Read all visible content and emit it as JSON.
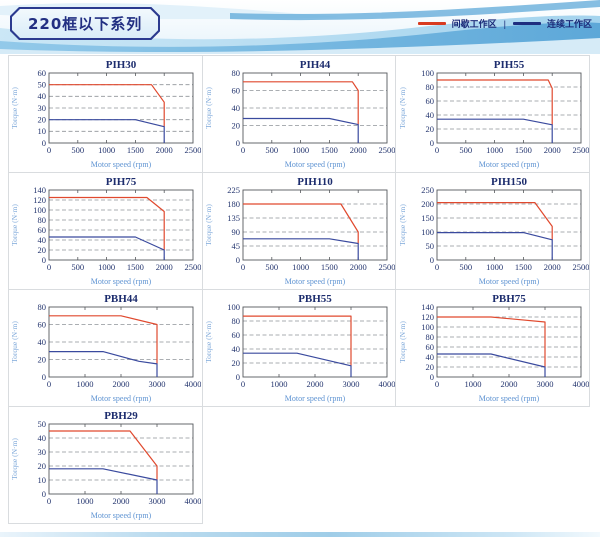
{
  "header": {
    "title": "220框以下系列",
    "legend": {
      "items": [
        {
          "label": "间歇工作区",
          "color": "#d83b20"
        },
        {
          "label": "连续工作区",
          "color": "#1f2e7f"
        }
      ],
      "separator": "|"
    }
  },
  "axes": {
    "xlabel": "Motor speed (rpm)",
    "ylabel": "Torque (N·m)"
  },
  "colors": {
    "intermittent_line": "#e0492e",
    "continuous_line": "#3a4a9e",
    "gridline": "#8f9499",
    "frame": "#55585c",
    "tick_text": "#25366f"
  },
  "chart_data": [
    {
      "type": "line",
      "title": "PIH30",
      "xlim": [
        0,
        2500
      ],
      "xstep": 500,
      "ylim": [
        0,
        60
      ],
      "ystep": 10,
      "series": [
        {
          "name": "间歇工作区",
          "color": "#e0492e",
          "points": [
            [
              0,
              50
            ],
            [
              1780,
              50
            ],
            [
              2000,
              35
            ],
            [
              2000,
              14
            ]
          ]
        },
        {
          "name": "连续工作区",
          "color": "#3a4a9e",
          "points": [
            [
              0,
              20
            ],
            [
              1500,
              20
            ],
            [
              2000,
              14
            ],
            [
              2000,
              0
            ]
          ]
        }
      ]
    },
    {
      "type": "line",
      "title": "PIH44",
      "xlim": [
        0,
        2500
      ],
      "xstep": 500,
      "ylim": [
        0,
        80
      ],
      "ystep": 20,
      "series": [
        {
          "name": "间歇工作区",
          "color": "#e0492e",
          "points": [
            [
              0,
              70
            ],
            [
              1900,
              70
            ],
            [
              2000,
              60
            ],
            [
              2000,
              21
            ]
          ]
        },
        {
          "name": "连续工作区",
          "color": "#3a4a9e",
          "points": [
            [
              0,
              28
            ],
            [
              1500,
              28
            ],
            [
              2000,
              21
            ],
            [
              2000,
              0
            ]
          ]
        }
      ]
    },
    {
      "type": "line",
      "title": "PIH55",
      "xlim": [
        0,
        2500
      ],
      "xstep": 500,
      "ylim": [
        0,
        100
      ],
      "ystep": 20,
      "series": [
        {
          "name": "间歇工作区",
          "color": "#e0492e",
          "points": [
            [
              0,
              90
            ],
            [
              1930,
              90
            ],
            [
              2000,
              78
            ],
            [
              2000,
              26
            ]
          ]
        },
        {
          "name": "连续工作区",
          "color": "#3a4a9e",
          "points": [
            [
              0,
              34
            ],
            [
              1500,
              34
            ],
            [
              2000,
              26
            ],
            [
              2000,
              0
            ]
          ]
        }
      ]
    },
    {
      "type": "line",
      "title": "PIH75",
      "xlim": [
        0,
        2500
      ],
      "xstep": 500,
      "ylim": [
        0,
        140
      ],
      "ystep": 20,
      "series": [
        {
          "name": "间歇工作区",
          "color": "#e0492e",
          "points": [
            [
              0,
              125
            ],
            [
              1700,
              125
            ],
            [
              2000,
              97
            ],
            [
              2000,
              20
            ]
          ]
        },
        {
          "name": "连续工作区",
          "color": "#3a4a9e",
          "points": [
            [
              0,
              46
            ],
            [
              1500,
              46
            ],
            [
              2000,
              20
            ],
            [
              2000,
              0
            ]
          ]
        }
      ]
    },
    {
      "type": "line",
      "title": "PIH110",
      "xlim": [
        0,
        2500
      ],
      "xstep": 500,
      "ylim": [
        0,
        225
      ],
      "ystep": 45,
      "series": [
        {
          "name": "间歇工作区",
          "color": "#e0492e",
          "points": [
            [
              0,
              180
            ],
            [
              1700,
              180
            ],
            [
              2000,
              90
            ],
            [
              2000,
              53
            ]
          ]
        },
        {
          "name": "连续工作区",
          "color": "#3a4a9e",
          "points": [
            [
              0,
              68
            ],
            [
              1500,
              68
            ],
            [
              2000,
              53
            ],
            [
              2000,
              0
            ]
          ]
        }
      ]
    },
    {
      "type": "line",
      "title": "PIH150",
      "xlim": [
        0,
        2500
      ],
      "xstep": 500,
      "ylim": [
        0,
        250
      ],
      "ystep": 50,
      "series": [
        {
          "name": "间歇工作区",
          "color": "#e0492e",
          "points": [
            [
              0,
              205
            ],
            [
              1700,
              205
            ],
            [
              2000,
              120
            ],
            [
              2000,
              72
            ]
          ]
        },
        {
          "name": "连续工作区",
          "color": "#3a4a9e",
          "points": [
            [
              0,
              98
            ],
            [
              1500,
              98
            ],
            [
              2000,
              72
            ],
            [
              2000,
              0
            ]
          ]
        }
      ]
    },
    {
      "type": "line",
      "title": "PBH44",
      "xlim": [
        0,
        4000
      ],
      "xstep": 1000,
      "ylim": [
        0,
        80
      ],
      "ystep": 20,
      "series": [
        {
          "name": "间歇工作区",
          "color": "#e0492e",
          "points": [
            [
              0,
              70
            ],
            [
              2000,
              70
            ],
            [
              3000,
              60
            ],
            [
              3000,
              15
            ]
          ]
        },
        {
          "name": "连续工作区",
          "color": "#3a4a9e",
          "points": [
            [
              0,
              29
            ],
            [
              1500,
              29
            ],
            [
              2500,
              18
            ],
            [
              3000,
              15
            ],
            [
              3000,
              0
            ]
          ]
        }
      ]
    },
    {
      "type": "line",
      "title": "PBH55",
      "xlim": [
        0,
        4000
      ],
      "xstep": 1000,
      "ylim": [
        0,
        100
      ],
      "ystep": 20,
      "series": [
        {
          "name": "间歇工作区",
          "color": "#e0492e",
          "points": [
            [
              0,
              87
            ],
            [
              3000,
              87
            ],
            [
              3000,
              16
            ]
          ]
        },
        {
          "name": "连续工作区",
          "color": "#3a4a9e",
          "points": [
            [
              0,
              34
            ],
            [
              1500,
              34
            ],
            [
              3000,
              16
            ],
            [
              3000,
              0
            ]
          ]
        }
      ]
    },
    {
      "type": "line",
      "title": "PBH75",
      "xlim": [
        0,
        4000
      ],
      "xstep": 1000,
      "ylim": [
        0,
        140
      ],
      "ystep": 20,
      "series": [
        {
          "name": "间歇工作区",
          "color": "#e0492e",
          "points": [
            [
              0,
              120
            ],
            [
              1500,
              120
            ],
            [
              3000,
              110
            ],
            [
              3000,
              20
            ]
          ]
        },
        {
          "name": "连续工作区",
          "color": "#3a4a9e",
          "points": [
            [
              0,
              46
            ],
            [
              1500,
              46
            ],
            [
              3000,
              20
            ],
            [
              3000,
              0
            ]
          ]
        }
      ]
    },
    {
      "type": "line",
      "title": "PBH29",
      "xlim": [
        0,
        4000
      ],
      "xstep": 1000,
      "ylim": [
        0,
        50
      ],
      "ystep": 10,
      "series": [
        {
          "name": "间歇工作区",
          "color": "#e0492e",
          "points": [
            [
              0,
              45
            ],
            [
              2250,
              45
            ],
            [
              3000,
              20
            ],
            [
              3000,
              10
            ]
          ]
        },
        {
          "name": "连续工作区",
          "color": "#3a4a9e",
          "points": [
            [
              0,
              18
            ],
            [
              1500,
              18
            ],
            [
              3000,
              10
            ],
            [
              3000,
              0
            ]
          ]
        }
      ]
    }
  ]
}
